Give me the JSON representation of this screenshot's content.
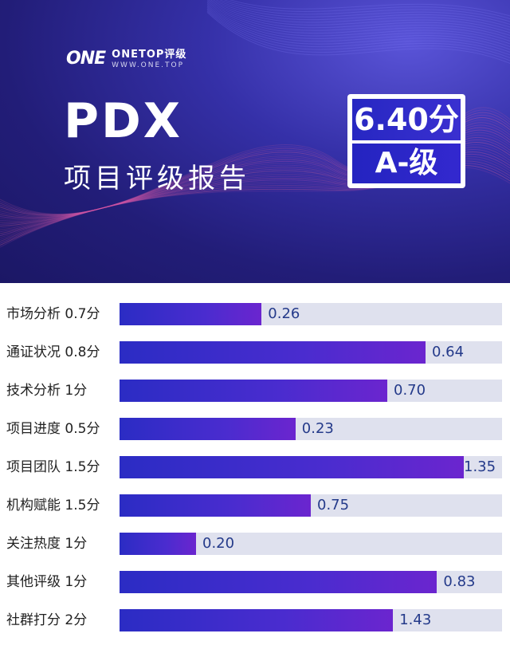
{
  "header": {
    "logo_mark": "ONE",
    "brand_name": "ONETOP评级",
    "brand_url": "WWW.ONE.TOP",
    "project_name": "PDX",
    "report_title": "项目评级报告",
    "score": "6.40分",
    "grade": "A-级"
  },
  "colors": {
    "header_bg": "#221d78",
    "bar_start": "#2b2cc4",
    "bar_end": "#6b25cf",
    "track": "#dfe1ee",
    "value_text": "#243a8a"
  },
  "chart_data": {
    "type": "bar",
    "orientation": "horizontal",
    "categories": [
      "市场分析 0.7分",
      "通证状况 0.8分",
      "技术分析  1分",
      "项目进度 0.5分",
      "项目团队 1.5分",
      "机构赋能 1.5分",
      "关注热度  1分",
      "其他评级  1分",
      "社群打分  2分"
    ],
    "max_scores": [
      0.7,
      0.8,
      1,
      0.5,
      1.5,
      1.5,
      1,
      1,
      2
    ],
    "values": [
      0.26,
      0.64,
      0.7,
      0.23,
      1.35,
      0.75,
      0.2,
      0.83,
      1.43
    ],
    "value_labels": [
      "0.26",
      "0.64",
      "0.70",
      "0.23",
      "1.35",
      "0.75",
      "0.20",
      "0.83",
      "1.43"
    ]
  }
}
